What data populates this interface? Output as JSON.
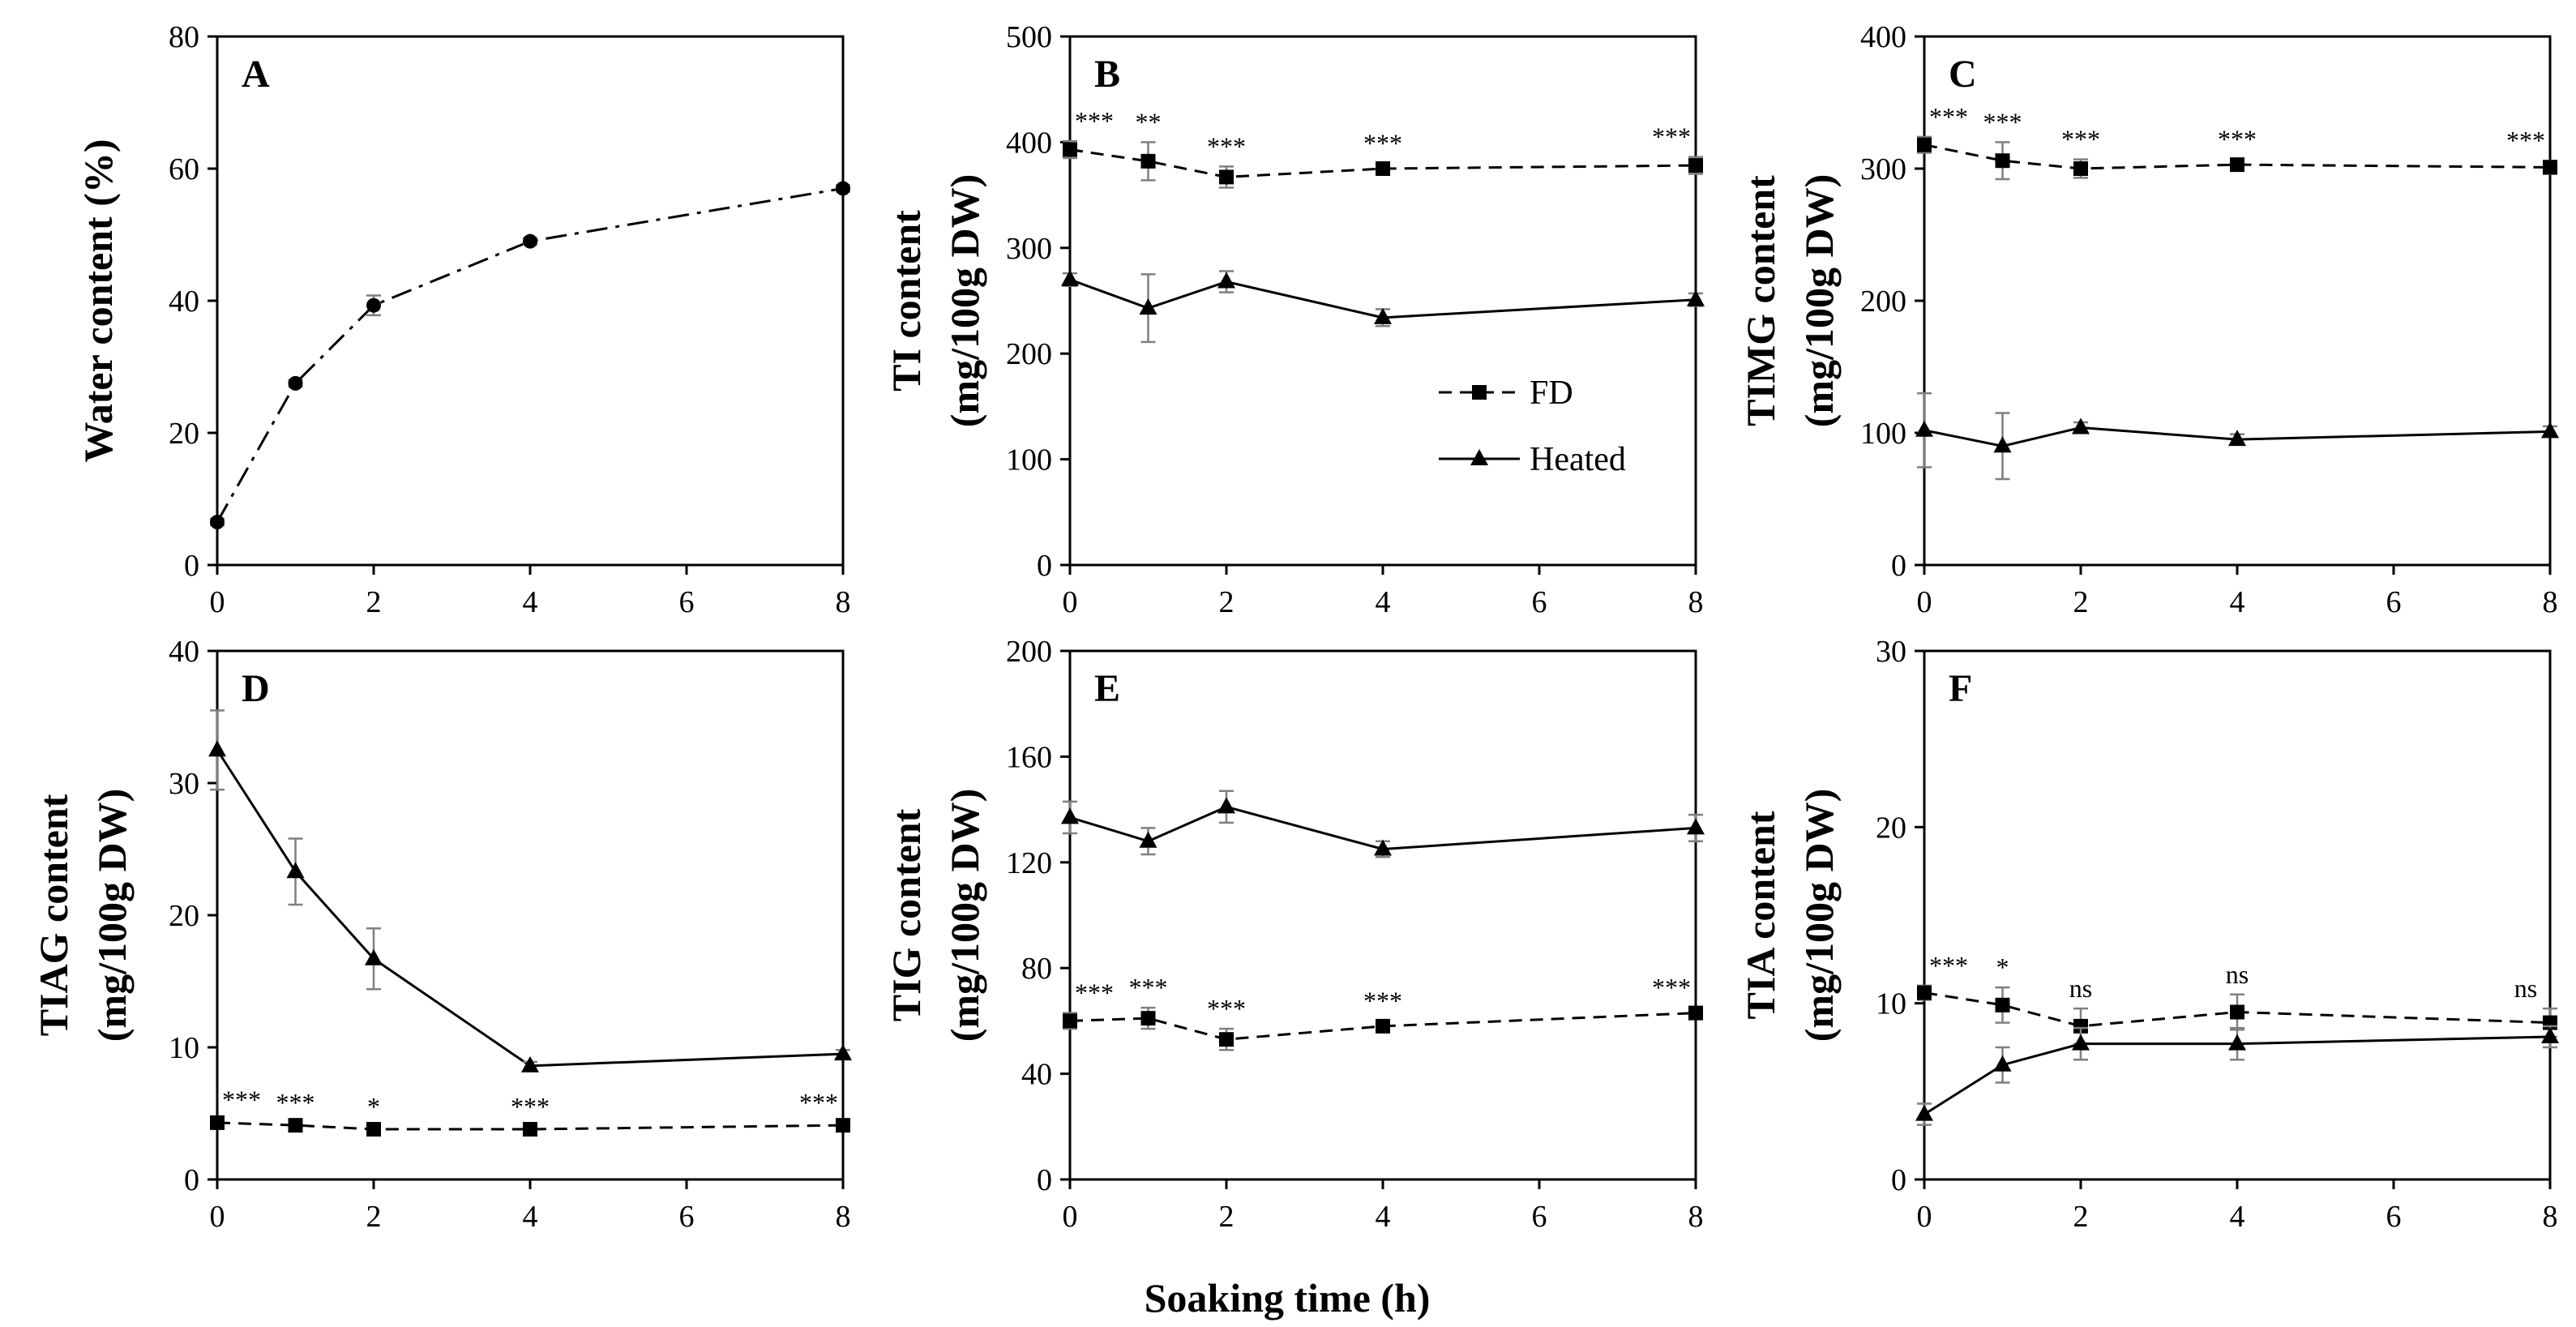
{
  "figure": {
    "xlabel": "Soaking time (h)",
    "legend": {
      "fd": "FD",
      "heated": "Heated"
    }
  },
  "colors": {
    "ink": "#000000",
    "errorbar": "#7f7f7f"
  },
  "chart_data": [
    {
      "id": "A",
      "type": "line",
      "panel_label": "A",
      "ylabel_lines": [
        "Water content (%)"
      ],
      "xlim": [
        0,
        8
      ],
      "xticks": [
        "0",
        "2",
        "4",
        "6",
        "8"
      ],
      "ylim": [
        0,
        80
      ],
      "yticks": [
        "0",
        "20",
        "40",
        "60",
        "80"
      ],
      "series": [
        {
          "name": "Water content",
          "style": "dashdot",
          "marker": "circle",
          "x": [
            0,
            1,
            2,
            4,
            8
          ],
          "y": [
            6.5,
            27.5,
            39.3,
            49,
            57
          ],
          "err": [
            0.5,
            0.5,
            1.5,
            0.5,
            0.5
          ]
        }
      ],
      "sig": []
    },
    {
      "id": "B",
      "type": "line",
      "panel_label": "B",
      "ylabel_lines": [
        "TI content",
        "(mg/100g DW)"
      ],
      "xlim": [
        0,
        8
      ],
      "xticks": [
        "0",
        "2",
        "4",
        "6",
        "8"
      ],
      "ylim": [
        0,
        500
      ],
      "yticks": [
        "0",
        "100",
        "200",
        "300",
        "400",
        "500"
      ],
      "legend": true,
      "series": [
        {
          "name": "FD",
          "style": "dashed",
          "marker": "square",
          "x": [
            0,
            1,
            2,
            4,
            8
          ],
          "y": [
            393,
            382,
            367,
            375,
            378
          ],
          "err": [
            8,
            18,
            10,
            5,
            8
          ]
        },
        {
          "name": "Heated",
          "style": "solid",
          "marker": "triangle",
          "x": [
            0,
            1,
            2,
            4,
            8
          ],
          "y": [
            270,
            243,
            268,
            234,
            251
          ],
          "err": [
            6,
            32,
            10,
            8,
            6
          ]
        }
      ],
      "sig": [
        {
          "x": 0,
          "label": "***"
        },
        {
          "x": 1,
          "label": "**"
        },
        {
          "x": 2,
          "label": "***"
        },
        {
          "x": 4,
          "label": "***"
        },
        {
          "x": 8,
          "label": "***"
        }
      ]
    },
    {
      "id": "C",
      "type": "line",
      "panel_label": "C",
      "ylabel_lines": [
        "TIMG content",
        "(mg/100g DW)"
      ],
      "xlim": [
        0,
        8
      ],
      "xticks": [
        "0",
        "2",
        "4",
        "6",
        "8"
      ],
      "ylim": [
        0,
        400
      ],
      "yticks": [
        "0",
        "100",
        "200",
        "300",
        "400"
      ],
      "series": [
        {
          "name": "FD",
          "style": "dashed",
          "marker": "square",
          "x": [
            0,
            1,
            2,
            4,
            8
          ],
          "y": [
            318,
            306,
            300,
            303,
            301
          ],
          "err": [
            6,
            14,
            7,
            4,
            5
          ]
        },
        {
          "name": "Heated",
          "style": "solid",
          "marker": "triangle",
          "x": [
            0,
            1,
            2,
            4,
            8
          ],
          "y": [
            102,
            90,
            104,
            95,
            101
          ],
          "err": [
            28,
            25,
            4,
            4,
            4
          ]
        }
      ],
      "sig": [
        {
          "x": 0,
          "label": "***"
        },
        {
          "x": 1,
          "label": "***"
        },
        {
          "x": 2,
          "label": "***"
        },
        {
          "x": 4,
          "label": "***"
        },
        {
          "x": 8,
          "label": "***"
        }
      ]
    },
    {
      "id": "D",
      "type": "line",
      "panel_label": "D",
      "ylabel_lines": [
        "TIAG content",
        "(mg/100g DW)"
      ],
      "xlim": [
        0,
        8
      ],
      "xticks": [
        "0",
        "2",
        "4",
        "6",
        "8"
      ],
      "ylim": [
        0,
        40
      ],
      "yticks": [
        "0",
        "10",
        "20",
        "30",
        "40"
      ],
      "series": [
        {
          "name": "FD",
          "style": "dashed",
          "marker": "square",
          "x": [
            0,
            1,
            2,
            4,
            8
          ],
          "y": [
            4.3,
            4.1,
            3.8,
            3.8,
            4.1
          ],
          "err": [
            0.2,
            0.2,
            0.2,
            0.2,
            0.2
          ]
        },
        {
          "name": "Heated",
          "style": "solid",
          "marker": "triangle",
          "x": [
            0,
            1,
            2,
            4,
            8
          ],
          "y": [
            32.5,
            23.3,
            16.7,
            8.6,
            9.5
          ],
          "err": [
            3,
            2.5,
            2.3,
            0.3,
            0.3
          ]
        }
      ],
      "sig": [
        {
          "x": 0,
          "label": "***"
        },
        {
          "x": 1,
          "label": "***"
        },
        {
          "x": 2,
          "label": "*"
        },
        {
          "x": 4,
          "label": "***"
        },
        {
          "x": 8,
          "label": "***"
        }
      ]
    },
    {
      "id": "E",
      "type": "line",
      "panel_label": "E",
      "ylabel_lines": [
        "TIG content",
        "(mg/100g DW)"
      ],
      "xlim": [
        0,
        8
      ],
      "xticks": [
        "0",
        "2",
        "4",
        "6",
        "8"
      ],
      "ylim": [
        0,
        200
      ],
      "yticks": [
        "0",
        "40",
        "80",
        "120",
        "160",
        "200"
      ],
      "series": [
        {
          "name": "FD",
          "style": "dashed",
          "marker": "square",
          "x": [
            0,
            1,
            2,
            4,
            8
          ],
          "y": [
            60,
            61,
            53,
            58,
            63
          ],
          "err": [
            3,
            4,
            4,
            2,
            2
          ]
        },
        {
          "name": "Heated",
          "style": "solid",
          "marker": "triangle",
          "x": [
            0,
            1,
            2,
            4,
            8
          ],
          "y": [
            137,
            128,
            141,
            125,
            133
          ],
          "err": [
            6,
            5,
            6,
            3,
            5
          ]
        }
      ],
      "sig": [
        {
          "x": 0,
          "label": "***"
        },
        {
          "x": 1,
          "label": "***"
        },
        {
          "x": 2,
          "label": "***"
        },
        {
          "x": 4,
          "label": "***"
        },
        {
          "x": 8,
          "label": "***"
        }
      ]
    },
    {
      "id": "F",
      "type": "line",
      "panel_label": "F",
      "ylabel_lines": [
        "TIA content",
        "(mg/100g DW)"
      ],
      "xlim": [
        0,
        8
      ],
      "xticks": [
        "0",
        "2",
        "4",
        "6",
        "8"
      ],
      "ylim": [
        0,
        30
      ],
      "yticks": [
        "0",
        "10",
        "20",
        "30"
      ],
      "series": [
        {
          "name": "FD",
          "style": "dashed",
          "marker": "square",
          "x": [
            0,
            1,
            2,
            4,
            8
          ],
          "y": [
            10.6,
            9.9,
            8.7,
            9.5,
            8.9
          ],
          "err": [
            0.4,
            1,
            1,
            1,
            0.8
          ]
        },
        {
          "name": "Heated",
          "style": "solid",
          "marker": "triangle",
          "x": [
            0,
            1,
            2,
            4,
            8
          ],
          "y": [
            3.7,
            6.5,
            7.7,
            7.7,
            8.1
          ],
          "err": [
            0.6,
            1,
            0.9,
            0.9,
            0.6
          ]
        }
      ],
      "sig": [
        {
          "x": 0,
          "label": "***"
        },
        {
          "x": 1,
          "label": "*"
        },
        {
          "x": 2,
          "label": "ns"
        },
        {
          "x": 4,
          "label": "ns"
        },
        {
          "x": 8,
          "label": "ns"
        }
      ]
    }
  ]
}
